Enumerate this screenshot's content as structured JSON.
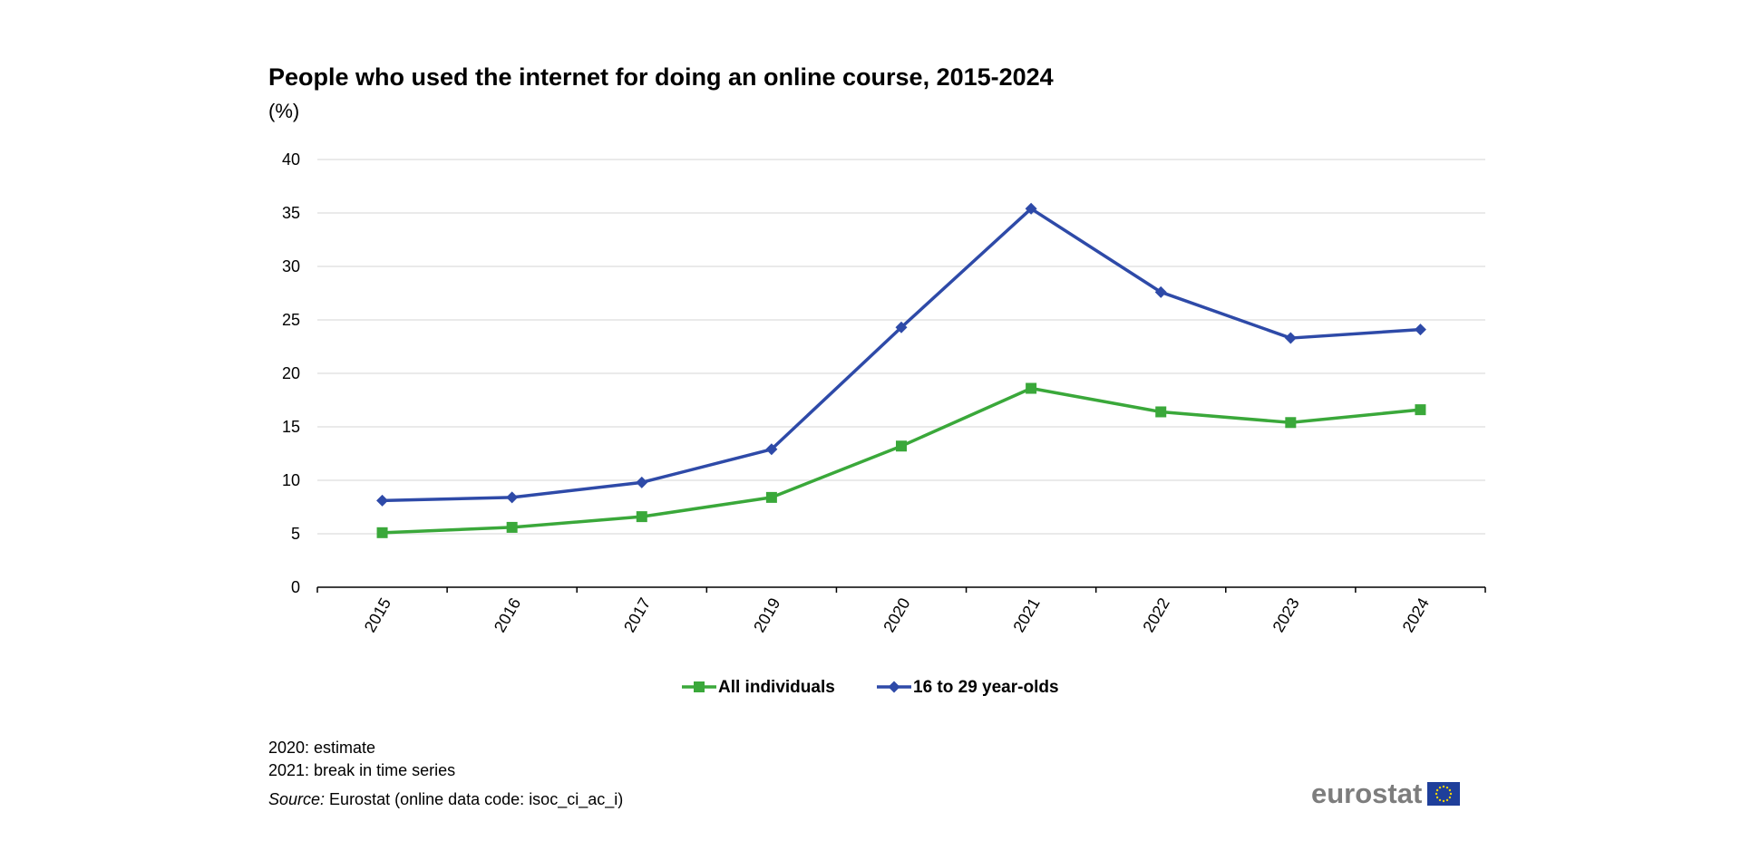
{
  "chart_data": {
    "type": "line",
    "title": "People who used the internet for doing an online course, 2015-2024",
    "unit": "(%)",
    "categories": [
      "2015",
      "2016",
      "2017",
      "2019",
      "2020",
      "2021",
      "2022",
      "2023",
      "2024"
    ],
    "ylim": [
      0,
      40
    ],
    "yticks": [
      0,
      5,
      10,
      15,
      20,
      25,
      30,
      35,
      40
    ],
    "grid": true,
    "legend_position": "bottom",
    "series": [
      {
        "name": "All individuals",
        "color": "#3aa83a",
        "marker": "square",
        "values": [
          5.1,
          5.6,
          6.6,
          8.4,
          13.2,
          18.6,
          16.4,
          15.4,
          16.6
        ]
      },
      {
        "name": "16 to 29 year-olds",
        "color": "#2e4aa8",
        "marker": "diamond",
        "values": [
          8.1,
          8.4,
          9.8,
          12.9,
          24.3,
          35.4,
          27.6,
          23.3,
          24.1
        ]
      }
    ]
  },
  "notes": {
    "note1": "2020: estimate",
    "note2": "2021: break in time series",
    "source_label": "Source:",
    "source_text": " Eurostat (online data code: isoc_ci_ac_i)"
  },
  "brand": {
    "name": "eurostat",
    "flag_color": "#1f3f9a",
    "star_color": "#f5d300"
  }
}
